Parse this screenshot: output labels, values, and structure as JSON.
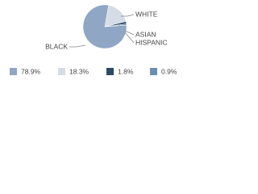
{
  "chart_data": {
    "type": "pie",
    "categories": [
      "BLACK",
      "WHITE",
      "ASIAN",
      "HISPANIC"
    ],
    "values": [
      78.9,
      18.3,
      1.8,
      0.9
    ],
    "value_labels": [
      "78.9%",
      "18.3%",
      "1.8%",
      "0.9%"
    ],
    "colors": [
      "#8fa6c4",
      "#d5dce6",
      "#2c4a6a",
      "#6d8db3"
    ]
  }
}
